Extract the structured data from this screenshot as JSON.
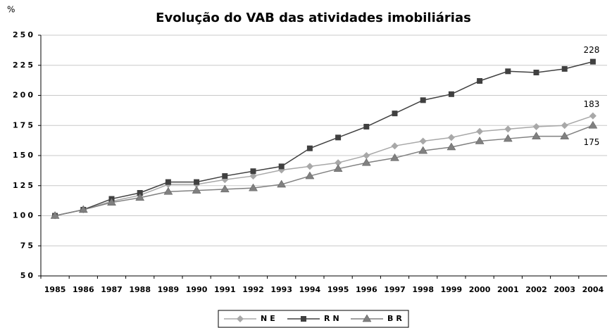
{
  "chart_data": {
    "type": "line",
    "title": "Evolução do VAB das atividades imobiliárias",
    "y_label": "%",
    "categories": [
      "1985",
      "1986",
      "1987",
      "1988",
      "1989",
      "1990",
      "1991",
      "1992",
      "1993",
      "1994",
      "1995",
      "1996",
      "1997",
      "1998",
      "1999",
      "2000",
      "2001",
      "2002",
      "2003",
      "2004"
    ],
    "series": [
      {
        "name": "NE",
        "color": "#a8a8a8",
        "marker": "diamond",
        "values": [
          100,
          105,
          112,
          117,
          126,
          126,
          130,
          133,
          138,
          141,
          144,
          150,
          158,
          162,
          165,
          170,
          172,
          174,
          175,
          183
        ]
      },
      {
        "name": "RN",
        "color": "#404040",
        "marker": "square",
        "values": [
          100,
          105,
          114,
          119,
          128,
          128,
          133,
          137,
          141,
          156,
          165,
          174,
          185,
          196,
          201,
          212,
          220,
          219,
          222,
          228
        ]
      },
      {
        "name": "BR",
        "color": "#808080",
        "marker": "triangle",
        "values": [
          100,
          105,
          111,
          115,
          120,
          121,
          122,
          123,
          126,
          133,
          139,
          144,
          148,
          154,
          157,
          162,
          164,
          166,
          166,
          175
        ]
      }
    ],
    "ylim": [
      50,
      250
    ],
    "yticks": [
      50,
      75,
      100,
      125,
      150,
      175,
      200,
      225,
      250
    ],
    "grid": true,
    "legend": "bottom"
  }
}
